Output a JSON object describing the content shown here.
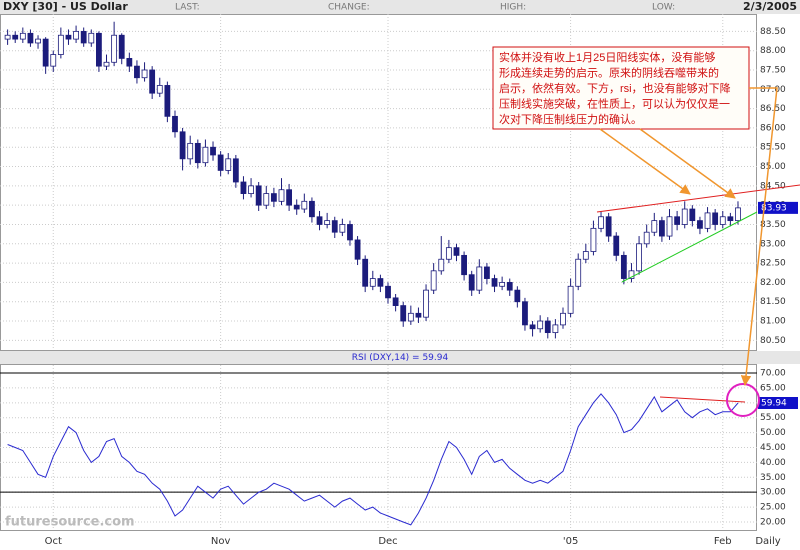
{
  "header": {
    "title": "DXY [30] - US Dollar",
    "last": "LAST:",
    "change": "CHANGE:",
    "high": "HIGH:",
    "low": "LOW:",
    "date": "2/3/2005"
  },
  "watermark": "futuresource.com",
  "chart_data": [
    {
      "type": "candlestick",
      "xlim": [
        -1,
        98.5
      ],
      "xticks": [
        {
          "value": 6,
          "label": "Oct"
        },
        {
          "value": 28,
          "label": "Nov"
        },
        {
          "value": 50,
          "label": "Dec"
        },
        {
          "value": 74,
          "label": "'05"
        },
        {
          "value": 94,
          "label": "Feb"
        }
      ],
      "xlabel": "Daily",
      "ylim": [
        80.25,
        88.95
      ],
      "yticks": [
        {
          "value": 80.5,
          "label": "80.50"
        },
        {
          "value": 81,
          "label": "81.00"
        },
        {
          "value": 81.5,
          "label": "81.50"
        },
        {
          "value": 82,
          "label": "82.00"
        },
        {
          "value": 82.5,
          "label": "82.50"
        },
        {
          "value": 83,
          "label": "83.00"
        },
        {
          "value": 83.5,
          "label": "83.50"
        },
        {
          "value": 84,
          "label": "84.00"
        },
        {
          "value": 84.5,
          "label": "84.50"
        },
        {
          "value": 85,
          "label": "85.00"
        },
        {
          "value": 85.5,
          "label": "85.50"
        },
        {
          "value": 86,
          "label": "86.00"
        },
        {
          "value": 86.5,
          "label": "86.50"
        },
        {
          "value": 87,
          "label": "87.00"
        },
        {
          "value": 87.5,
          "label": "87.50"
        },
        {
          "value": 88,
          "label": "88.00"
        },
        {
          "value": 88.5,
          "label": "88.50"
        }
      ],
      "grid": true,
      "up_color": "#ffffff",
      "down_color": "#1c1c7c",
      "open": [
        88.3,
        88.4,
        88.3,
        88.45,
        88.2,
        88.3,
        87.6,
        87.9,
        88.4,
        88.3,
        88.5,
        88.2,
        88.45,
        87.6,
        87.7,
        88.4,
        87.8,
        87.6,
        87.3,
        87.5,
        86.9,
        87.1,
        86.3,
        85.9,
        85.2,
        85.6,
        85.1,
        85.5,
        85.3,
        84.9,
        85.2,
        84.6,
        84.3,
        84.5,
        84.0,
        84.3,
        84.1,
        84.4,
        84.0,
        83.9,
        84.1,
        83.7,
        83.5,
        83.6,
        83.3,
        83.5,
        83.1,
        82.6,
        81.9,
        82.1,
        81.9,
        81.6,
        81.4,
        81.0,
        81.2,
        81.1,
        81.8,
        82.3,
        82.6,
        82.9,
        82.7,
        82.2,
        81.8,
        82.4,
        82.1,
        81.9,
        82.0,
        81.8,
        81.5,
        80.9,
        80.8,
        81.0,
        80.7,
        80.9,
        81.2,
        81.9,
        82.6,
        82.8,
        83.4,
        83.7,
        83.2,
        82.7,
        82.1,
        82.3,
        83.0,
        83.3,
        83.6,
        83.2,
        83.7,
        83.5,
        83.9,
        83.6,
        83.4,
        83.8,
        83.5,
        83.7,
        83.6
      ],
      "high": [
        88.55,
        88.5,
        88.6,
        88.55,
        88.4,
        88.35,
        88.0,
        88.6,
        88.55,
        88.65,
        88.6,
        88.55,
        88.5,
        87.9,
        88.75,
        88.45,
        87.95,
        87.75,
        87.7,
        87.6,
        87.3,
        87.2,
        86.45,
        86.0,
        85.8,
        85.7,
        85.7,
        85.65,
        85.4,
        85.35,
        85.3,
        84.75,
        84.7,
        84.6,
        84.5,
        84.45,
        84.7,
        84.55,
        84.15,
        84.3,
        84.2,
        83.85,
        83.8,
        83.7,
        83.65,
        83.6,
        83.2,
        82.7,
        82.3,
        82.2,
        82.0,
        81.7,
        81.5,
        81.4,
        81.35,
        81.95,
        82.5,
        83.2,
        83.1,
        83.0,
        82.8,
        82.3,
        82.6,
        82.5,
        82.2,
        82.15,
        82.1,
        81.9,
        81.6,
        81.0,
        81.15,
        81.1,
        81.05,
        81.35,
        82.1,
        82.75,
        83.0,
        83.6,
        83.85,
        83.8,
        83.3,
        82.8,
        82.5,
        83.2,
        83.5,
        83.8,
        83.7,
        83.9,
        83.85,
        84.1,
        84.0,
        83.7,
        83.95,
        83.9,
        83.85,
        83.8,
        84.1
      ],
      "low": [
        88.15,
        88.2,
        88.2,
        88.1,
        88.05,
        87.4,
        87.45,
        87.8,
        88.15,
        88.2,
        88.1,
        88.1,
        87.45,
        87.5,
        87.6,
        87.65,
        87.45,
        87.15,
        87.2,
        86.75,
        86.8,
        86.15,
        85.75,
        84.9,
        85.05,
        84.95,
        85.0,
        85.15,
        84.75,
        84.8,
        84.45,
        84.15,
        84.2,
        83.85,
        83.9,
        83.95,
        84.0,
        83.85,
        83.75,
        83.8,
        83.55,
        83.35,
        83.4,
        83.15,
        83.2,
        82.95,
        82.45,
        81.75,
        81.8,
        81.75,
        81.45,
        81.25,
        80.85,
        80.9,
        80.95,
        81.0,
        81.7,
        82.2,
        82.5,
        82.55,
        82.05,
        81.65,
        81.7,
        81.95,
        81.75,
        81.8,
        81.65,
        81.35,
        80.75,
        80.6,
        80.7,
        80.55,
        80.55,
        80.8,
        81.1,
        81.8,
        82.5,
        82.7,
        83.3,
        83.05,
        82.55,
        81.95,
        82.0,
        82.2,
        82.9,
        83.2,
        83.05,
        83.1,
        83.35,
        83.4,
        83.45,
        83.25,
        83.3,
        83.35,
        83.4,
        83.45,
        83.5
      ],
      "close": [
        88.4,
        88.3,
        88.45,
        88.2,
        88.3,
        87.6,
        87.9,
        88.4,
        88.3,
        88.5,
        88.2,
        88.45,
        87.6,
        87.7,
        88.4,
        87.8,
        87.6,
        87.3,
        87.5,
        86.9,
        87.1,
        86.3,
        85.9,
        85.2,
        85.6,
        85.1,
        85.5,
        85.3,
        84.9,
        85.2,
        84.6,
        84.3,
        84.5,
        84.0,
        84.3,
        84.1,
        84.4,
        84.0,
        83.9,
        84.1,
        83.7,
        83.5,
        83.6,
        83.3,
        83.5,
        83.1,
        82.6,
        81.9,
        82.1,
        81.9,
        81.6,
        81.4,
        81.0,
        81.2,
        81.1,
        81.8,
        82.3,
        82.6,
        82.9,
        82.7,
        82.2,
        81.8,
        82.4,
        82.1,
        81.9,
        82.0,
        81.8,
        81.5,
        80.9,
        80.8,
        81.0,
        80.7,
        80.9,
        81.2,
        81.9,
        82.6,
        82.8,
        83.4,
        83.7,
        83.2,
        82.7,
        82.1,
        82.3,
        83.0,
        83.3,
        83.6,
        83.2,
        83.7,
        83.5,
        83.9,
        83.6,
        83.4,
        83.8,
        83.5,
        83.7,
        83.6,
        83.93
      ],
      "price_marker": {
        "value": 83.93,
        "label": "83.93"
      },
      "annotation_lines": [
        "实体并没有收上1月25日阳线实体，没有能够",
        "形成连续走势的启示。原来的阴线吞噬带来的",
        "启示，依然有效。下方，rsi，也没有能够对下降",
        "压制线实施突破，在性质上，可以认为仅仅是一",
        "次对下降压制线压力的确认。"
      ]
    },
    {
      "type": "line",
      "title": "RSI (DXY,14) = 59.94",
      "xlim": [
        -1,
        98.5
      ],
      "ylim": [
        17.3,
        72.7
      ],
      "yticks": [
        {
          "value": 20,
          "label": "20.00"
        },
        {
          "value": 25,
          "label": "25.00"
        },
        {
          "value": 30,
          "label": "30.00"
        },
        {
          "value": 35,
          "label": "35.00"
        },
        {
          "value": 40,
          "label": "40.00"
        },
        {
          "value": 45,
          "label": "45.00"
        },
        {
          "value": 50,
          "label": "50.00"
        },
        {
          "value": 55,
          "label": "55.00"
        },
        {
          "value": 60,
          "label": "60.00"
        },
        {
          "value": 65,
          "label": "65.00"
        },
        {
          "value": 70,
          "label": "70.00"
        }
      ],
      "hlines": [
        70,
        30
      ],
      "grid": true,
      "color": "#2b2bd0",
      "values": [
        46,
        45,
        44,
        40,
        36,
        35,
        42,
        47,
        52,
        50,
        44,
        40,
        42,
        47,
        48,
        42,
        40,
        37,
        36,
        33,
        31,
        27,
        22,
        24,
        28,
        32,
        30,
        28,
        31,
        32,
        29,
        26,
        28,
        30,
        31,
        33,
        32,
        31,
        29,
        27,
        28,
        29,
        27,
        25,
        27,
        28,
        26,
        24,
        25,
        23,
        22,
        21,
        20,
        19,
        23,
        28,
        34,
        41,
        47,
        45,
        41,
        36,
        42,
        44,
        40,
        41,
        38,
        36,
        34,
        33,
        34,
        33,
        35,
        37,
        44,
        52,
        56,
        60,
        63,
        60,
        56,
        50,
        51,
        54,
        58,
        62,
        57,
        59,
        61,
        57,
        55,
        57,
        58,
        56,
        57,
        57,
        59.94
      ],
      "marker": {
        "value": 59.94,
        "label": "59.94"
      }
    }
  ]
}
